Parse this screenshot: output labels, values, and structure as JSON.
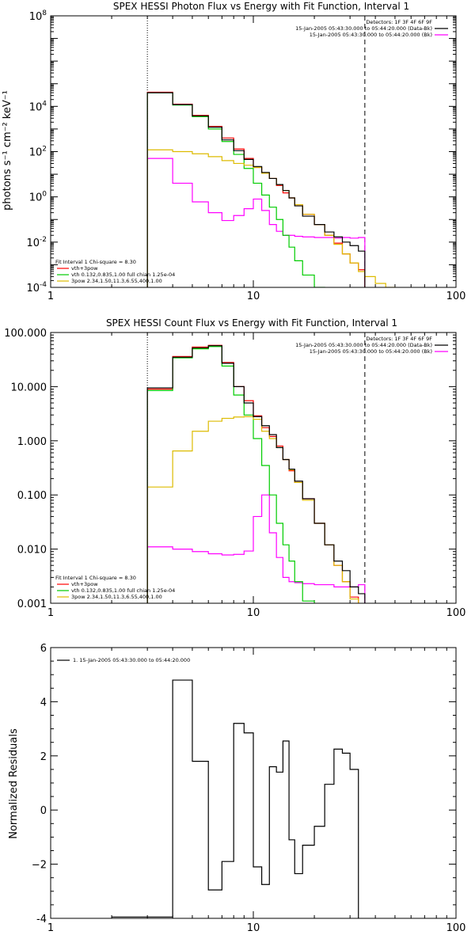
{
  "chart_data": [
    {
      "type": "line",
      "title": "SPEX HESSI Photon Flux vs Energy with Fit Function, Interval 1",
      "xlabel": "",
      "ylabel": "photons s⁻¹ cm⁻² keV⁻¹",
      "xlim": [
        1,
        100
      ],
      "ylim": [
        0.0001,
        100000000
      ],
      "xscale": "log",
      "yscale": "log",
      "xticks": [
        {
          "v": 1,
          "label": "1"
        },
        {
          "v": 10,
          "label": "10"
        },
        {
          "v": 100,
          "label": "100"
        }
      ],
      "yticks": [
        {
          "v": 0.0001,
          "base": "10",
          "exp": "-4"
        },
        {
          "v": 0.01,
          "base": "10",
          "exp": "-2"
        },
        {
          "v": 1,
          "base": "10",
          "exp": "0"
        },
        {
          "v": 100,
          "base": "10",
          "exp": "2"
        },
        {
          "v": 10000,
          "base": "10",
          "exp": "4"
        },
        {
          "v": 100000000,
          "base": "10",
          "exp": "8"
        }
      ],
      "vlines": [
        {
          "x": 3,
          "style": "dotted"
        },
        {
          "x": 35.5,
          "style": "dashed"
        }
      ],
      "legend_top": [
        "Detectors: 1F 3F 4F 6F 9F",
        "15-Jan-2005 05:43:30.000 to 05:44:20.000 (Data-Bk)",
        "15-Jan-2005 05:43:30.000 to 05:44:20.000 (Bk)"
      ],
      "legend_bottom": [
        "Fit Interval 1   Chi-square = 8.30",
        "vth+3pow",
        "vth 0.132,0.835,1.00  full chian 1.25e-04",
        "3pow 2.34,1.50,11.3,6.55,400,1.00"
      ],
      "bin_edges": [
        3.0,
        4.0,
        5.0,
        6.0,
        7.0,
        8.0,
        9.0,
        10.0,
        11.0,
        12.0,
        13.0,
        14.0,
        15.0,
        16.0,
        17.5,
        20.0,
        22.5,
        25.0,
        27.5,
        30.0,
        33.0,
        35.5,
        40.0,
        45.0,
        50.0
      ],
      "series": [
        {
          "name": "15-Jan-2005 05:43:30.000 to 05:44:20.000 (Data-Bk)",
          "color": "#000000",
          "values": [
            40000,
            12000,
            3800,
            1200,
            330,
            110,
            45,
            22,
            12,
            6.5,
            3.5,
            1.9,
            0.9,
            0.4,
            0.14,
            0.06,
            0.028,
            0.017,
            0.01,
            0.007,
            0.004
          ]
        },
        {
          "name": "15-Jan-2005 05:43:30.000 to 05:44:20.000 (Bk)",
          "color": "#ff00ff",
          "values": [
            50,
            4,
            0.6,
            0.2,
            0.09,
            0.15,
            0.3,
            0.8,
            0.25,
            0.06,
            0.03,
            0.02,
            0.02,
            0.018,
            0.017,
            0.016,
            0.016,
            0.015,
            0.016,
            0.015,
            0.016
          ]
        },
        {
          "name": "vth+3pow",
          "color": "#ff0000",
          "values": [
            42000,
            12500,
            4000,
            1300,
            400,
            130,
            50,
            20,
            11,
            6.5,
            3.2,
            1.5,
            0.9,
            0.45,
            0.17,
            0.06,
            0.02,
            0.009,
            0.003,
            0.0012,
            0.0006
          ]
        },
        {
          "name": "vth 0.132,0.835,1.00  full chian 1.25e-04",
          "color": "#00cc00",
          "values": [
            40000,
            11500,
            3500,
            1000,
            280,
            75,
            18,
            4,
            1.2,
            0.35,
            0.1,
            0.02,
            0.006,
            0.0015,
            0.00035,
            0.0001
          ]
        },
        {
          "name": "3pow 2.34,1.50,11.3,6.55,400,1.00",
          "color": "#ddbb00",
          "values": [
            120,
            100,
            80,
            60,
            40,
            30,
            25,
            20,
            11,
            6.5,
            3.5,
            1.9,
            0.9,
            0.45,
            0.17,
            0.06,
            0.02,
            0.008,
            0.003,
            0.0012,
            0.0005,
            0.0003,
            0.00015,
            0.0001
          ]
        }
      ]
    },
    {
      "type": "line",
      "title": "SPEX HESSI Count Flux vs Energy with Fit Function, Interval 1",
      "xlabel": "",
      "ylabel": "",
      "xlim": [
        1,
        100
      ],
      "ylim": [
        0.001,
        100
      ],
      "xscale": "log",
      "yscale": "log",
      "xticks": [
        {
          "v": 1,
          "label": "1"
        },
        {
          "v": 10,
          "label": "10"
        },
        {
          "v": 100,
          "label": "100"
        }
      ],
      "yticks": [
        {
          "v": 0.001,
          "label": "0.001"
        },
        {
          "v": 0.01,
          "label": "0.010"
        },
        {
          "v": 0.1,
          "label": "0.100"
        },
        {
          "v": 1,
          "label": "1.000"
        },
        {
          "v": 10,
          "label": "10.000"
        },
        {
          "v": 100,
          "label": "100.000"
        }
      ],
      "vlines": [
        {
          "x": 3,
          "style": "dotted"
        },
        {
          "x": 35.5,
          "style": "dashed"
        }
      ],
      "legend_top": [
        "Detectors: 1F 3F 4F 6F 9F",
        "15-Jan-2005 05:43:30.000 to 05:44:20.000 (Data-Bk)",
        "15-Jan-2005 05:43:30.000 to 05:44:20.000 (Bk)"
      ],
      "legend_bottom": [
        "Fit Interval 1   Chi-square = 8.30",
        "vth+3pow",
        "vth 0.132,0.835,1.00  full chian 1.25e-04",
        "3pow 2.34,1.50,11.3,6.55,400,1.00"
      ],
      "bin_edges": [
        3.0,
        4.0,
        5.0,
        6.0,
        7.0,
        8.0,
        9.0,
        10.0,
        11.0,
        12.0,
        13.0,
        14.0,
        15.0,
        16.0,
        17.5,
        20.0,
        22.5,
        25.0,
        27.5,
        30.0,
        33.0,
        35.5,
        40.0,
        45.0,
        50.0
      ],
      "series": [
        {
          "name": "15-Jan-2005 05:43:30.000 to 05:44:20.000 (Data-Bk)",
          "color": "#000000",
          "values": [
            9.5,
            35,
            52,
            57,
            27,
            10,
            5,
            2.8,
            1.9,
            1.3,
            0.75,
            0.45,
            0.3,
            0.18,
            0.085,
            0.03,
            0.012,
            0.006,
            0.004,
            0.002,
            0.0015
          ]
        },
        {
          "name": "15-Jan-2005 05:43:30.000 to 05:44:20.000 (Bk)",
          "color": "#ff00ff",
          "values": [
            0.011,
            0.01,
            0.009,
            0.0082,
            0.0078,
            0.008,
            0.0092,
            0.04,
            0.1,
            0.02,
            0.007,
            0.003,
            0.0025,
            0.0024,
            0.0023,
            0.0022,
            0.0022,
            0.002,
            0.002,
            0.002,
            0.0022
          ]
        },
        {
          "name": "vth+3pow",
          "color": "#ff0000",
          "values": [
            9,
            36,
            54,
            58,
            28,
            10,
            5.5,
            2.9,
            1.75,
            1.2,
            0.8,
            0.45,
            0.28,
            0.17,
            0.085,
            0.03,
            0.012,
            0.005,
            0.0025,
            0.0013
          ]
        },
        {
          "name": "vth 0.132,0.835,1.00  full chian 1.25e-04",
          "color": "#00cc00",
          "values": [
            8.5,
            34,
            50,
            55,
            24,
            7,
            3,
            1.1,
            0.35,
            0.1,
            0.03,
            0.012,
            0.006,
            0.0025,
            0.0011
          ]
        },
        {
          "name": "3pow 2.34,1.50,11.3,6.55,400,1.00",
          "color": "#ddbb00",
          "values": [
            0.14,
            0.65,
            1.5,
            2.3,
            2.6,
            2.75,
            2.8,
            2.5,
            1.5,
            1.1,
            0.75,
            0.45,
            0.29,
            0.17,
            0.08,
            0.03,
            0.012,
            0.005,
            0.0025,
            0.0012
          ]
        }
      ]
    },
    {
      "type": "line",
      "title": "",
      "xlabel": "",
      "ylabel": "Normalized Residuals",
      "xlim": [
        1,
        100
      ],
      "ylim": [
        -4,
        6
      ],
      "xscale": "log",
      "yscale": "linear",
      "xticks": [
        {
          "v": 1,
          "label": "1"
        },
        {
          "v": 10,
          "label": "10"
        },
        {
          "v": 100,
          "label": "100"
        }
      ],
      "yticks": [
        {
          "v": -4,
          "label": "-4"
        },
        {
          "v": -2,
          "label": "−2"
        },
        {
          "v": 0,
          "label": "0"
        },
        {
          "v": 2,
          "label": "2"
        },
        {
          "v": 4,
          "label": "4"
        },
        {
          "v": 6,
          "label": "6"
        }
      ],
      "legend_top": [
        "1. 15-Jan-2005 05:43:30.000 to 05:44:20.000"
      ],
      "bin_edges": [
        3.0,
        4.0,
        5.0,
        6.0,
        7.0,
        8.0,
        9.0,
        10.0,
        11.0,
        12.0,
        13.0,
        14.0,
        15.0,
        16.0,
        17.5,
        20.0,
        22.5,
        25.0,
        27.5,
        30.0,
        33.0,
        35.5
      ],
      "series": [
        {
          "name": "1. 15-Jan-2005 05:43:30.000 to 05:44:20.000",
          "color": "#000000",
          "values": [
            -3.95,
            4.8,
            1.8,
            -2.95,
            -1.9,
            3.2,
            2.85,
            -2.1,
            -2.75,
            1.6,
            1.4,
            2.55,
            -1.1,
            -2.35,
            -1.3,
            -0.6,
            0.95,
            2.25,
            2.1,
            1.5
          ],
          "start": -3.95,
          "end_drop": -4.0
        }
      ]
    }
  ]
}
